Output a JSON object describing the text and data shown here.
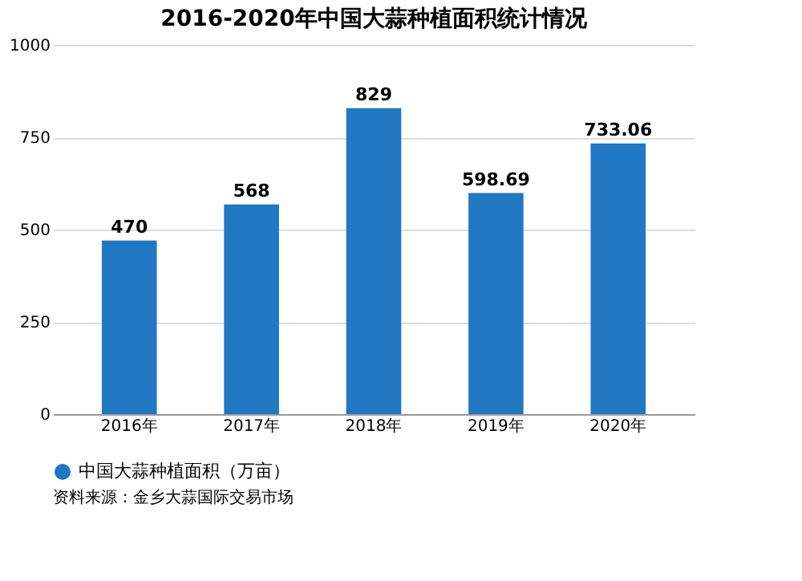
{
  "chart_data": {
    "type": "bar",
    "title": "2016-2020年中国大蒜种植面积统计情况",
    "categories": [
      "2016年",
      "2017年",
      "2018年",
      "2019年",
      "2020年"
    ],
    "series": [
      {
        "name": "中国大蒜种植面积（万亩）",
        "color": "#1f78c1",
        "values": [
          470,
          568,
          829,
          598.69,
          733.06
        ]
      }
    ],
    "value_labels": [
      "470",
      "568",
      "829",
      "598.69",
      "733.06"
    ],
    "ylim": [
      0,
      1000
    ],
    "yticks": [
      0,
      250,
      500,
      750,
      1000
    ],
    "grid": "y",
    "legend": "bottom",
    "annotations": [
      "资料来源：金乡大蒜国际交易市场"
    ]
  }
}
